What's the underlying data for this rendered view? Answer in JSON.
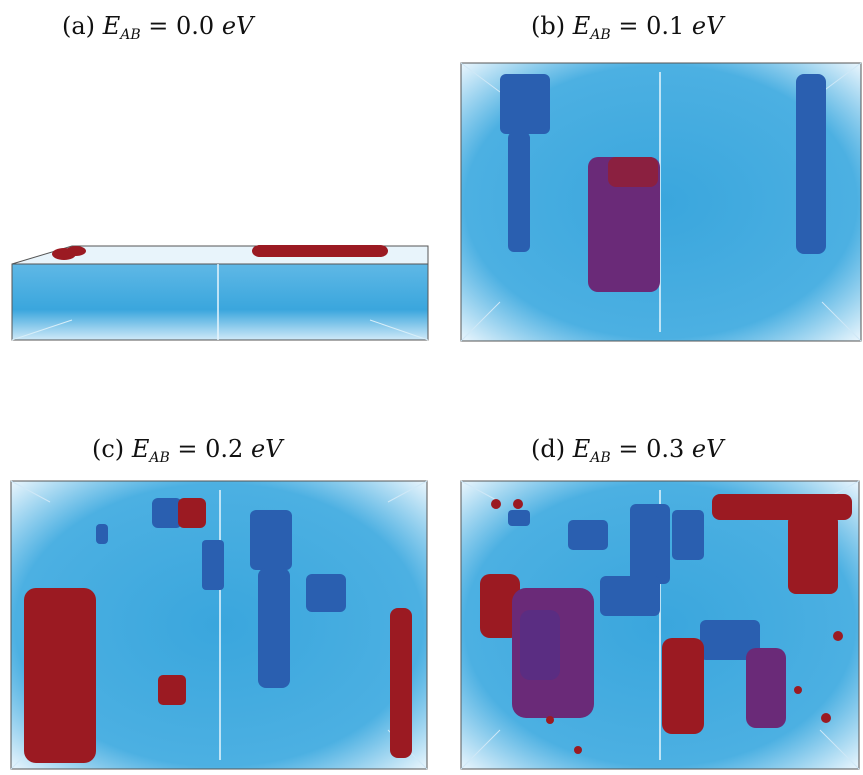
{
  "panels": [
    {
      "tag": "(a)",
      "symbol": "E",
      "subscript": "AB",
      "relation": "=",
      "value": "0.0",
      "unit": "eV"
    },
    {
      "tag": "(b)",
      "symbol": "E",
      "subscript": "AB",
      "relation": "=",
      "value": "0.1",
      "unit": "eV"
    },
    {
      "tag": "(c)",
      "symbol": "E",
      "subscript": "AB",
      "relation": "=",
      "value": "0.2",
      "unit": "eV"
    },
    {
      "tag": "(d)",
      "symbol": "E",
      "subscript": "AB",
      "relation": "=",
      "value": "0.3",
      "unit": "eV"
    }
  ],
  "colors": {
    "background": "#ffffff",
    "matrix_blue": "#3aa6dd",
    "matrix_blue_light": "#a9d8f2",
    "cluster_dark_blue": "#2a5fb0",
    "cluster_red": "#9b1a22",
    "cluster_purple": "#6a2a78",
    "box_edge": "#555555"
  }
}
